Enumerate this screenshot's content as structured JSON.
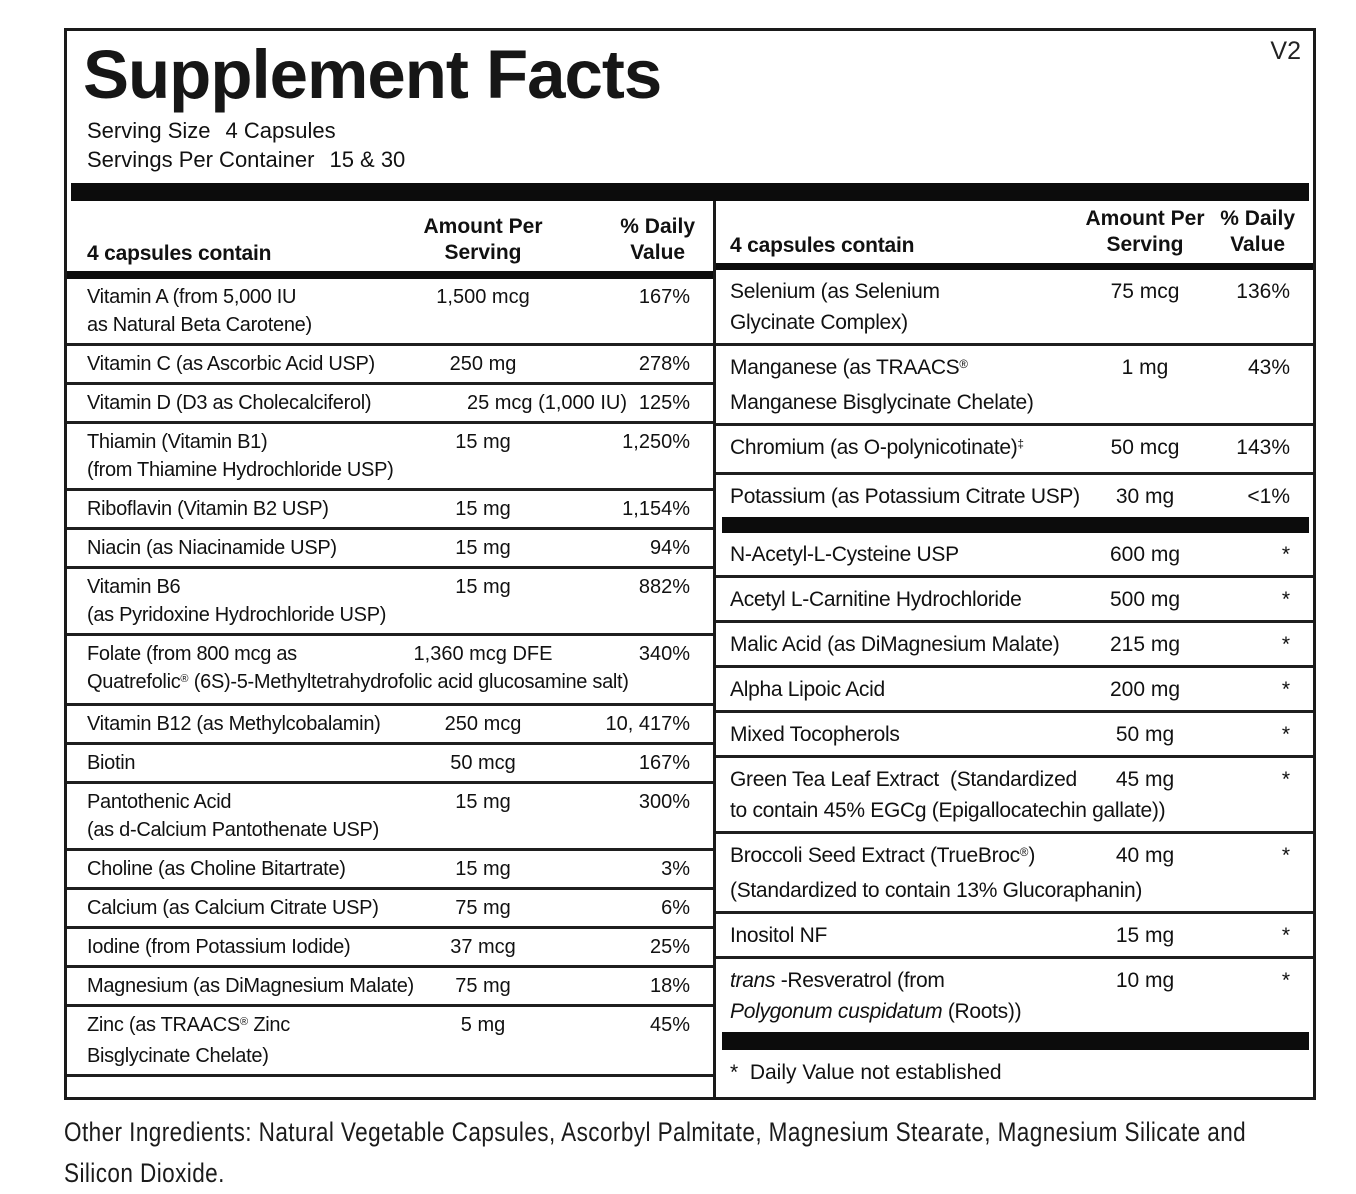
{
  "version": "V2",
  "title": "Supplement Facts",
  "serving_size": {
    "label": "Serving Size",
    "value": "4 Capsules"
  },
  "servings_per_container": {
    "label": "Servings Per Container",
    "value": "15 & 30"
  },
  "columns": {
    "left": {
      "header": {
        "contains": "4 capsules contain",
        "amount_line1": "Amount Per",
        "amount_line2": "Serving",
        "dv_line1": "% Daily",
        "dv_line2": "Value"
      },
      "rows": [
        {
          "name_lines": [
            [
              {
                "t": "Vitamin A (from 5,000 IU"
              }
            ],
            [
              {
                "t": "as Natural Beta Carotene)"
              }
            ]
          ],
          "amount": "1,500 mcg",
          "dv": "167%"
        },
        {
          "name_lines": [
            [
              {
                "t": "Vitamin C (as Ascorbic Acid USP)"
              }
            ]
          ],
          "amount": "250 mg",
          "dv": "278%"
        },
        {
          "name_lines": [
            [
              {
                "t": "Vitamin D (D3 as Cholecalciferol)"
              }
            ]
          ],
          "amount": "25 mcg (1,000 IU)",
          "dv": "125%",
          "wide": true
        },
        {
          "name_lines": [
            [
              {
                "t": "Thiamin (Vitamin B1)"
              }
            ],
            [
              {
                "t": "(from Thiamine Hydrochloride USP)"
              }
            ]
          ],
          "amount": "15 mg",
          "dv": "1,250%"
        },
        {
          "name_lines": [
            [
              {
                "t": "Riboflavin (Vitamin B2 USP)"
              }
            ]
          ],
          "amount": "15 mg",
          "dv": "1,154%"
        },
        {
          "name_lines": [
            [
              {
                "t": "Niacin (as Niacinamide USP)"
              }
            ]
          ],
          "amount": "15 mg",
          "dv": "94%"
        },
        {
          "name_lines": [
            [
              {
                "t": "Vitamin B6"
              }
            ],
            [
              {
                "t": "(as Pyridoxine Hydrochloride USP)"
              }
            ]
          ],
          "amount": "15 mg",
          "dv": "882%"
        },
        {
          "name_lines": [
            [
              {
                "t": "Folate (from 800 mcg as"
              }
            ],
            [
              {
                "t": "Quatrefolic"
              },
              {
                "t": "®",
                "sup": true
              },
              {
                "t": " (6S)-5-Methyltetrahydrofolic acid glucosamine salt)"
              }
            ]
          ],
          "amount": "1,360 mcg DFE",
          "dv": "340%"
        },
        {
          "name_lines": [
            [
              {
                "t": "Vitamin B12 (as Methylcobalamin)"
              }
            ]
          ],
          "amount": "250 mcg",
          "dv": "10, 417%"
        },
        {
          "name_lines": [
            [
              {
                "t": "Biotin"
              }
            ]
          ],
          "amount": "50 mcg",
          "dv": "167%"
        },
        {
          "name_lines": [
            [
              {
                "t": "Pantothenic Acid"
              }
            ],
            [
              {
                "t": "(as d-Calcium Pantothenate USP)"
              }
            ]
          ],
          "amount": "15 mg",
          "dv": "300%"
        },
        {
          "name_lines": [
            [
              {
                "t": "Choline (as Choline Bitartrate)"
              }
            ]
          ],
          "amount": "15 mg",
          "dv": "3%"
        },
        {
          "name_lines": [
            [
              {
                "t": "Calcium (as Calcium Citrate USP)"
              }
            ]
          ],
          "amount": "75 mg",
          "dv": "6%"
        },
        {
          "name_lines": [
            [
              {
                "t": "Iodine (from Potassium Iodide)"
              }
            ]
          ],
          "amount": "37 mcg",
          "dv": "25%"
        },
        {
          "name_lines": [
            [
              {
                "t": "Magnesium (as DiMagnesium Malate)"
              }
            ]
          ],
          "amount": "75 mg",
          "dv": "18%"
        },
        {
          "name_lines": [
            [
              {
                "t": "Zinc (as TRAACS"
              },
              {
                "t": "®",
                "sup": true
              },
              {
                "t": " Zinc"
              }
            ],
            [
              {
                "t": "Bisglycinate Chelate)"
              }
            ]
          ],
          "amount": "5 mg",
          "dv": "45%"
        }
      ]
    },
    "right": {
      "header": {
        "contains": "4 capsules contain",
        "amount_line1": "Amount Per",
        "amount_line2": "Serving",
        "dv_line1": "% Daily",
        "dv_line2": "Value"
      },
      "sections": [
        {
          "rows": [
            {
              "name_lines": [
                [
                  {
                    "t": "Selenium (as Selenium"
                  }
                ],
                [
                  {
                    "t": "Glycinate Complex)"
                  }
                ]
              ],
              "amount": "75 mcg",
              "dv": "136%"
            },
            {
              "name_lines": [
                [
                  {
                    "t": "Manganese (as TRAACS"
                  },
                  {
                    "t": "®",
                    "sup": true
                  }
                ],
                [
                  {
                    "t": "Manganese Bisglycinate Chelate)"
                  }
                ]
              ],
              "amount": "1 mg",
              "dv": "43%"
            },
            {
              "name_lines": [
                [
                  {
                    "t": "Chromium (as O-polynicotinate)"
                  },
                  {
                    "t": "‡",
                    "sup": true
                  }
                ]
              ],
              "amount": "50 mcg",
              "dv": "143%"
            },
            {
              "name_lines": [
                [
                  {
                    "t": "Potassium (as Potassium Citrate USP)"
                  }
                ]
              ],
              "amount": "30 mg",
              "dv": "<1%"
            }
          ]
        },
        {
          "rows": [
            {
              "name_lines": [
                [
                  {
                    "t": "N-Acetyl-L-Cysteine USP"
                  }
                ]
              ],
              "amount": "600 mg",
              "dv": "*"
            },
            {
              "name_lines": [
                [
                  {
                    "t": "Acetyl L-Carnitine Hydrochloride"
                  }
                ]
              ],
              "amount": "500 mg",
              "dv": "*"
            },
            {
              "name_lines": [
                [
                  {
                    "t": "Malic Acid (as DiMagnesium Malate)"
                  }
                ]
              ],
              "amount": "215 mg",
              "dv": "*"
            },
            {
              "name_lines": [
                [
                  {
                    "t": "Alpha Lipoic Acid"
                  }
                ]
              ],
              "amount": "200 mg",
              "dv": "*"
            },
            {
              "name_lines": [
                [
                  {
                    "t": "Mixed Tocopherols"
                  }
                ]
              ],
              "amount": "50 mg",
              "dv": "*"
            },
            {
              "name_lines": [
                [
                  {
                    "t": "Green Tea Leaf Extract  (Standardized"
                  }
                ],
                [
                  {
                    "t": "to contain 45% EGCg (Epigallocatechin gallate))"
                  }
                ]
              ],
              "amount": "45 mg",
              "dv": "*"
            },
            {
              "name_lines": [
                [
                  {
                    "t": "Broccoli Seed Extract (TrueBroc"
                  },
                  {
                    "t": "®",
                    "sup": true
                  },
                  {
                    "t": ")"
                  }
                ],
                [
                  {
                    "t": "(Standardized to contain 13% Glucoraphanin)"
                  }
                ]
              ],
              "amount": "40 mg",
              "dv": "*"
            },
            {
              "name_lines": [
                [
                  {
                    "t": "Inositol NF"
                  }
                ]
              ],
              "amount": "15 mg",
              "dv": "*"
            },
            {
              "name_lines": [
                [
                  {
                    "t": "trans",
                    "i": true
                  },
                  {
                    "t": " -Resveratrol (from"
                  }
                ],
                [
                  {
                    "t": "Polygonum cuspidatum",
                    "i": true
                  },
                  {
                    "t": " (Roots))"
                  }
                ]
              ],
              "amount": "10 mg",
              "dv": "*"
            }
          ]
        }
      ],
      "footnote": "*  Daily Value not established"
    }
  },
  "other_ingredients": {
    "lines": [
      "Other Ingredients: Natural Vegetable Capsules, Ascorbyl Palmitate, Magnesium Stearate, Magnesium Silicate and",
      "Silicon Dioxide."
    ]
  }
}
